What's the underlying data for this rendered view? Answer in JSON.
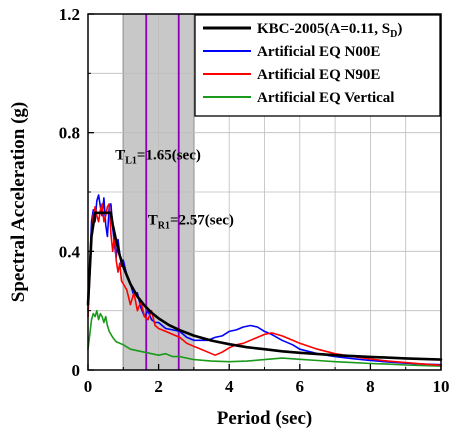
{
  "chart_data": {
    "type": "line",
    "xlabel": "Period (sec)",
    "ylabel": "Spectral Acceleration (g)",
    "xlim": [
      0,
      10
    ],
    "ylim": [
      0,
      1.2
    ],
    "x_ticks": [
      "0",
      "2",
      "4",
      "6",
      "8",
      "10"
    ],
    "y_ticks": [
      "0",
      "0.4",
      "0.8",
      "1.2"
    ],
    "grid": true,
    "legend_position": "top-right",
    "shaded_band": {
      "x_from": 1.0,
      "x_to": 3.0,
      "color": "#c8c8c8"
    },
    "vertical_lines": [
      {
        "x": 1.65,
        "color": "#8b00b5"
      },
      {
        "x": 2.57,
        "color": "#8b00b5"
      }
    ],
    "annotations": [
      {
        "main": "T",
        "sub": "L1",
        "rest": "=1.65(sec)",
        "x": 1.65,
        "y": 0.71
      },
      {
        "main": "T",
        "sub": "R1",
        "rest": "=2.57(sec)",
        "x": 2.57,
        "y": 0.49
      }
    ],
    "series": [
      {
        "name": "KBC-2005(A=0.11, S",
        "name_sub": "D",
        "name_tail": ")",
        "color": "#000000",
        "width": 2.6,
        "x": [
          0,
          0.1,
          0.2,
          0.35,
          0.5,
          0.6,
          0.65,
          0.7,
          0.8,
          0.9,
          1.0,
          1.2,
          1.4,
          1.6,
          1.8,
          2.0,
          2.3,
          2.6,
          3.0,
          3.5,
          4.0,
          4.5,
          5.0,
          5.5,
          6.0,
          7.0,
          8.0,
          9.0,
          10.0
        ],
        "y": [
          0.22,
          0.45,
          0.53,
          0.53,
          0.53,
          0.53,
          0.53,
          0.49,
          0.435,
          0.386,
          0.348,
          0.29,
          0.248,
          0.217,
          0.193,
          0.174,
          0.151,
          0.134,
          0.116,
          0.099,
          0.087,
          0.077,
          0.07,
          0.063,
          0.058,
          0.05,
          0.044,
          0.039,
          0.035
        ]
      },
      {
        "name": "Artificial EQ N00E",
        "color": "#0000ff",
        "width": 1.6,
        "x": [
          0,
          0.05,
          0.1,
          0.15,
          0.2,
          0.25,
          0.3,
          0.35,
          0.4,
          0.45,
          0.5,
          0.55,
          0.6,
          0.65,
          0.7,
          0.75,
          0.8,
          0.85,
          0.9,
          0.95,
          1.0,
          1.1,
          1.2,
          1.3,
          1.4,
          1.5,
          1.6,
          1.7,
          1.8,
          1.9,
          2.0,
          2.2,
          2.4,
          2.6,
          2.8,
          3.0,
          3.2,
          3.4,
          3.6,
          3.8,
          4.0,
          4.2,
          4.4,
          4.6,
          4.8,
          5.0,
          5.2,
          5.5,
          5.8,
          6.0,
          6.5,
          7.0,
          7.5,
          8.0,
          8.5,
          9.0,
          9.5,
          10.0
        ],
        "y": [
          0.2,
          0.35,
          0.5,
          0.54,
          0.5,
          0.57,
          0.59,
          0.55,
          0.52,
          0.58,
          0.49,
          0.45,
          0.55,
          0.56,
          0.48,
          0.42,
          0.38,
          0.44,
          0.39,
          0.35,
          0.37,
          0.32,
          0.29,
          0.25,
          0.26,
          0.21,
          0.18,
          0.2,
          0.17,
          0.16,
          0.16,
          0.14,
          0.135,
          0.13,
          0.11,
          0.1,
          0.1,
          0.1,
          0.11,
          0.115,
          0.13,
          0.135,
          0.145,
          0.15,
          0.145,
          0.13,
          0.12,
          0.1,
          0.085,
          0.07,
          0.055,
          0.045,
          0.038,
          0.032,
          0.027,
          0.023,
          0.02,
          0.018
        ]
      },
      {
        "name": "Artificial EQ N90E",
        "color": "#ff0000",
        "width": 1.6,
        "x": [
          0,
          0.05,
          0.1,
          0.15,
          0.2,
          0.25,
          0.3,
          0.35,
          0.4,
          0.45,
          0.5,
          0.55,
          0.6,
          0.65,
          0.7,
          0.75,
          0.8,
          0.85,
          0.9,
          0.95,
          1.0,
          1.1,
          1.2,
          1.3,
          1.4,
          1.5,
          1.6,
          1.7,
          1.8,
          1.9,
          2.0,
          2.2,
          2.4,
          2.6,
          2.8,
          3.0,
          3.2,
          3.4,
          3.6,
          3.8,
          4.0,
          4.2,
          4.4,
          4.6,
          4.8,
          5.0,
          5.2,
          5.5,
          5.8,
          6.0,
          6.5,
          7.0,
          7.5,
          8.0,
          8.5,
          9.0,
          9.5,
          10.0
        ],
        "y": [
          0.18,
          0.32,
          0.46,
          0.52,
          0.55,
          0.52,
          0.5,
          0.54,
          0.56,
          0.5,
          0.52,
          0.55,
          0.56,
          0.46,
          0.4,
          0.45,
          0.37,
          0.33,
          0.36,
          0.3,
          0.29,
          0.27,
          0.22,
          0.26,
          0.2,
          0.23,
          0.18,
          0.17,
          0.2,
          0.15,
          0.14,
          0.13,
          0.12,
          0.11,
          0.09,
          0.08,
          0.07,
          0.06,
          0.05,
          0.06,
          0.075,
          0.085,
          0.09,
          0.1,
          0.11,
          0.12,
          0.125,
          0.115,
          0.1,
          0.09,
          0.07,
          0.055,
          0.045,
          0.037,
          0.03,
          0.025,
          0.02,
          0.016
        ]
      },
      {
        "name": "Artificial EQ Vertical",
        "color": "#1a9a1a",
        "width": 1.6,
        "x": [
          0,
          0.05,
          0.1,
          0.15,
          0.2,
          0.25,
          0.3,
          0.35,
          0.4,
          0.45,
          0.5,
          0.55,
          0.6,
          0.7,
          0.8,
          0.9,
          1.0,
          1.2,
          1.4,
          1.6,
          1.8,
          2.0,
          2.2,
          2.4,
          2.6,
          2.8,
          3.0,
          3.5,
          4.0,
          4.5,
          5.0,
          5.5,
          6.0,
          6.5,
          7.0,
          7.5,
          8.0,
          8.5,
          9.0,
          9.5,
          10.0
        ],
        "y": [
          0.07,
          0.12,
          0.17,
          0.19,
          0.18,
          0.2,
          0.17,
          0.19,
          0.18,
          0.16,
          0.18,
          0.15,
          0.13,
          0.11,
          0.095,
          0.09,
          0.085,
          0.07,
          0.065,
          0.06,
          0.055,
          0.05,
          0.055,
          0.045,
          0.045,
          0.04,
          0.035,
          0.03,
          0.028,
          0.03,
          0.035,
          0.04,
          0.036,
          0.032,
          0.028,
          0.025,
          0.022,
          0.02,
          0.017,
          0.015,
          0.013
        ]
      }
    ]
  }
}
